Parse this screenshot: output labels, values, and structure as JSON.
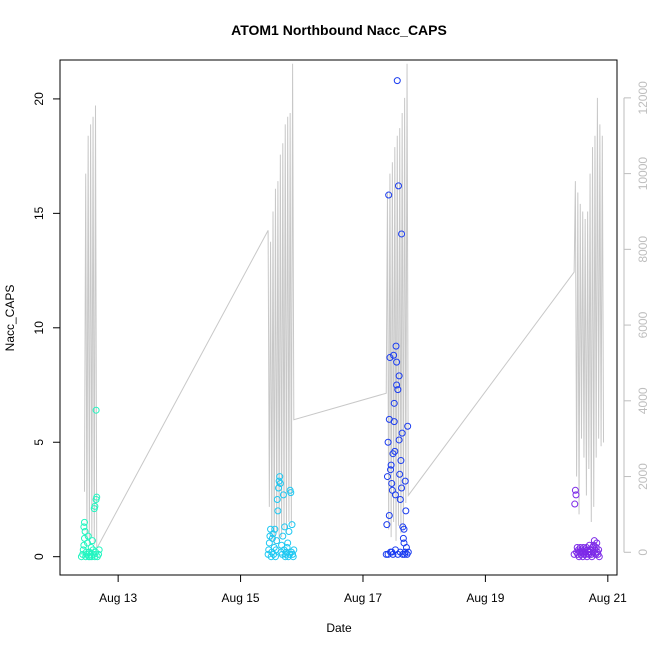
{
  "chart_data": {
    "type": "scatter",
    "title": "ATOM1 Northbound Nacc_CAPS",
    "xlabel": "Date",
    "ylabel": "Nacc_CAPS",
    "x_axis": {
      "range_days_aug": [
        12.05,
        21.15
      ],
      "ticks": [
        {
          "day": 13,
          "label": "Aug 13"
        },
        {
          "day": 15,
          "label": "Aug 15"
        },
        {
          "day": 17,
          "label": "Aug 17"
        },
        {
          "day": 19,
          "label": "Aug 19"
        },
        {
          "day": 21,
          "label": "Aug 21"
        }
      ]
    },
    "y_axis_left": {
      "range": [
        -0.8,
        21.7
      ],
      "ticks": [
        0,
        5,
        10,
        15,
        20
      ]
    },
    "y_axis_right": {
      "range": [
        -600,
        13000
      ],
      "ticks": [
        0,
        2000,
        4000,
        6000,
        8000,
        10000,
        12000
      ],
      "color": "#bebebe"
    },
    "background_line": {
      "color": "#c8c8c8",
      "points": [
        [
          12.45,
          1600
        ],
        [
          12.47,
          10000
        ],
        [
          12.49,
          300
        ],
        [
          12.51,
          11000
        ],
        [
          12.53,
          200
        ],
        [
          12.55,
          11300
        ],
        [
          12.57,
          400
        ],
        [
          12.59,
          11500
        ],
        [
          12.61,
          200
        ],
        [
          12.63,
          11800
        ],
        [
          12.65,
          100
        ],
        [
          15.45,
          8500
        ],
        [
          15.47,
          1200
        ],
        [
          15.49,
          8200
        ],
        [
          15.51,
          300
        ],
        [
          15.53,
          9000
        ],
        [
          15.55,
          200
        ],
        [
          15.57,
          9600
        ],
        [
          15.59,
          500
        ],
        [
          15.61,
          9800
        ],
        [
          15.63,
          300
        ],
        [
          15.65,
          10500
        ],
        [
          15.67,
          400
        ],
        [
          15.69,
          10800
        ],
        [
          15.71,
          600
        ],
        [
          15.73,
          11300
        ],
        [
          15.75,
          500
        ],
        [
          15.77,
          11500
        ],
        [
          15.79,
          800
        ],
        [
          15.81,
          11600
        ],
        [
          15.83,
          700
        ],
        [
          15.85,
          12900
        ],
        [
          15.87,
          3500
        ],
        [
          17.38,
          4200
        ],
        [
          17.4,
          9500
        ],
        [
          17.42,
          600
        ],
        [
          17.44,
          10000
        ],
        [
          17.46,
          400
        ],
        [
          17.48,
          10300
        ],
        [
          17.5,
          800
        ],
        [
          17.52,
          10700
        ],
        [
          17.54,
          300
        ],
        [
          17.56,
          11000
        ],
        [
          17.58,
          700
        ],
        [
          17.6,
          11200
        ],
        [
          17.62,
          500
        ],
        [
          17.64,
          11600
        ],
        [
          17.66,
          600
        ],
        [
          17.68,
          12000
        ],
        [
          17.7,
          1300
        ],
        [
          17.72,
          12900
        ],
        [
          17.74,
          1500
        ],
        [
          20.45,
          7400
        ],
        [
          20.47,
          9800
        ],
        [
          20.49,
          2000
        ],
        [
          20.51,
          9500
        ],
        [
          20.53,
          1000
        ],
        [
          20.55,
          9200
        ],
        [
          20.57,
          3000
        ],
        [
          20.59,
          9000
        ],
        [
          20.61,
          2500
        ],
        [
          20.63,
          8800
        ],
        [
          20.65,
          1500
        ],
        [
          20.67,
          9000
        ],
        [
          20.69,
          2200
        ],
        [
          20.71,
          10000
        ],
        [
          20.73,
          800
        ],
        [
          20.75,
          10700
        ],
        [
          20.77,
          1200
        ],
        [
          20.79,
          11000
        ],
        [
          20.81,
          2500
        ],
        [
          20.83,
          12000
        ],
        [
          20.85,
          3000
        ],
        [
          20.87,
          11300
        ],
        [
          20.89,
          2800
        ],
        [
          20.91,
          11000
        ],
        [
          20.93,
          2900
        ]
      ]
    },
    "series": [
      {
        "color": "#22f5c0",
        "points": [
          [
            12.4,
            0.0
          ],
          [
            12.42,
            0.1
          ],
          [
            12.43,
            0.3
          ],
          [
            12.44,
            0.5
          ],
          [
            12.45,
            0.8
          ],
          [
            12.46,
            1.1
          ],
          [
            12.44,
            1.3
          ],
          [
            12.45,
            1.5
          ],
          [
            12.47,
            0.0
          ],
          [
            12.48,
            0.2
          ],
          [
            12.49,
            0.1
          ],
          [
            12.5,
            0.6
          ],
          [
            12.51,
            0.9
          ],
          [
            12.52,
            0.0
          ],
          [
            12.53,
            0.2
          ],
          [
            12.55,
            0.1
          ],
          [
            12.56,
            0.4
          ],
          [
            12.57,
            0.0
          ],
          [
            12.58,
            0.7
          ],
          [
            12.59,
            0.3
          ],
          [
            12.6,
            0.1
          ],
          [
            12.61,
            2.1
          ],
          [
            12.62,
            2.2
          ],
          [
            12.63,
            0.2
          ],
          [
            12.64,
            2.5
          ],
          [
            12.65,
            2.6
          ],
          [
            12.66,
            0.0
          ],
          [
            12.64,
            6.4
          ],
          [
            12.68,
            0.1
          ],
          [
            12.69,
            0.3
          ],
          [
            12.62,
            0.0
          ],
          [
            12.54,
            0.0
          ]
        ]
      },
      {
        "color": "#1ec8f2",
        "points": [
          [
            15.45,
            0.1
          ],
          [
            15.46,
            0.3
          ],
          [
            15.47,
            0.6
          ],
          [
            15.48,
            0.9
          ],
          [
            15.49,
            1.2
          ],
          [
            15.5,
            0.0
          ],
          [
            15.51,
            0.2
          ],
          [
            15.52,
            0.8
          ],
          [
            15.53,
            1.0
          ],
          [
            15.54,
            0.1
          ],
          [
            15.55,
            0.4
          ],
          [
            15.56,
            1.2
          ],
          [
            15.57,
            0.0
          ],
          [
            15.58,
            0.3
          ],
          [
            15.59,
            0.7
          ],
          [
            15.6,
            2.5
          ],
          [
            15.61,
            2.0
          ],
          [
            15.62,
            3.0
          ],
          [
            15.63,
            3.3
          ],
          [
            15.64,
            3.5
          ],
          [
            15.65,
            3.2
          ],
          [
            15.66,
            0.2
          ],
          [
            15.67,
            0.5
          ],
          [
            15.68,
            0.1
          ],
          [
            15.69,
            0.9
          ],
          [
            15.7,
            2.7
          ],
          [
            15.71,
            0.3
          ],
          [
            15.72,
            1.3
          ],
          [
            15.73,
            0.0
          ],
          [
            15.74,
            0.1
          ],
          [
            15.75,
            0.2
          ],
          [
            15.76,
            0.4
          ],
          [
            15.77,
            0.6
          ],
          [
            15.78,
            0.0
          ],
          [
            15.79,
            1.1
          ],
          [
            15.8,
            0.1
          ],
          [
            15.81,
            2.9
          ],
          [
            15.82,
            2.8
          ],
          [
            15.83,
            0.2
          ],
          [
            15.84,
            1.4
          ],
          [
            15.85,
            0.1
          ],
          [
            15.86,
            0.0
          ],
          [
            15.87,
            0.3
          ]
        ]
      },
      {
        "color": "#1a3cf0",
        "points": [
          [
            17.38,
            0.1
          ],
          [
            17.39,
            1.4
          ],
          [
            17.4,
            3.5
          ],
          [
            17.41,
            5.0
          ],
          [
            17.42,
            15.8
          ],
          [
            17.43,
            6.0
          ],
          [
            17.44,
            8.7
          ],
          [
            17.45,
            3.8
          ],
          [
            17.46,
            4.0
          ],
          [
            17.47,
            0.2
          ],
          [
            17.48,
            2.9
          ],
          [
            17.49,
            4.5
          ],
          [
            17.5,
            8.8
          ],
          [
            17.51,
            6.7
          ],
          [
            17.52,
            4.6
          ],
          [
            17.53,
            2.7
          ],
          [
            17.54,
            9.2
          ],
          [
            17.55,
            7.5
          ],
          [
            17.56,
            20.8
          ],
          [
            17.57,
            7.3
          ],
          [
            17.58,
            16.2
          ],
          [
            17.59,
            5.1
          ],
          [
            17.6,
            3.6
          ],
          [
            17.61,
            2.5
          ],
          [
            17.62,
            4.2
          ],
          [
            17.63,
            14.1
          ],
          [
            17.64,
            5.4
          ],
          [
            17.65,
            1.3
          ],
          [
            17.66,
            0.8
          ],
          [
            17.67,
            1.2
          ],
          [
            17.68,
            0.1
          ],
          [
            17.69,
            3.3
          ],
          [
            17.7,
            2.0
          ],
          [
            17.71,
            0.4
          ],
          [
            17.72,
            0.1
          ],
          [
            17.73,
            5.7
          ],
          [
            17.74,
            0.2
          ],
          [
            17.41,
            0.1
          ],
          [
            17.45,
            0.2
          ],
          [
            17.49,
            0.1
          ],
          [
            17.53,
            0.3
          ],
          [
            17.57,
            0.1
          ],
          [
            17.61,
            0.2
          ],
          [
            17.65,
            0.1
          ],
          [
            17.69,
            0.2
          ],
          [
            17.43,
            1.8
          ],
          [
            17.47,
            3.2
          ],
          [
            17.51,
            5.9
          ],
          [
            17.55,
            8.5
          ],
          [
            17.59,
            7.9
          ],
          [
            17.63,
            3.0
          ],
          [
            17.67,
            0.6
          ]
        ]
      },
      {
        "color": "#7d2ae8",
        "points": [
          [
            20.45,
            0.1
          ],
          [
            20.46,
            2.3
          ],
          [
            20.47,
            2.9
          ],
          [
            20.48,
            2.7
          ],
          [
            20.49,
            0.2
          ],
          [
            20.5,
            0.4
          ],
          [
            20.51,
            0.1
          ],
          [
            20.52,
            0.3
          ],
          [
            20.53,
            0.0
          ],
          [
            20.54,
            0.2
          ],
          [
            20.55,
            0.4
          ],
          [
            20.56,
            0.1
          ],
          [
            20.57,
            0.3
          ],
          [
            20.58,
            0.2
          ],
          [
            20.59,
            0.0
          ],
          [
            20.6,
            0.4
          ],
          [
            20.61,
            0.1
          ],
          [
            20.62,
            0.3
          ],
          [
            20.63,
            0.2
          ],
          [
            20.64,
            0.1
          ],
          [
            20.65,
            0.4
          ],
          [
            20.66,
            0.0
          ],
          [
            20.67,
            0.3
          ],
          [
            20.68,
            0.2
          ],
          [
            20.69,
            0.1
          ],
          [
            20.7,
            0.5
          ],
          [
            20.71,
            0.2
          ],
          [
            20.72,
            0.3
          ],
          [
            20.73,
            0.1
          ],
          [
            20.74,
            0.0
          ],
          [
            20.75,
            0.4
          ],
          [
            20.76,
            0.2
          ],
          [
            20.77,
            0.5
          ],
          [
            20.78,
            0.7
          ],
          [
            20.79,
            0.3
          ],
          [
            20.8,
            0.1
          ],
          [
            20.81,
            0.4
          ],
          [
            20.82,
            0.6
          ],
          [
            20.83,
            0.2
          ],
          [
            20.84,
            0.1
          ],
          [
            20.85,
            0.3
          ],
          [
            20.86,
            0.0
          ]
        ]
      }
    ]
  }
}
